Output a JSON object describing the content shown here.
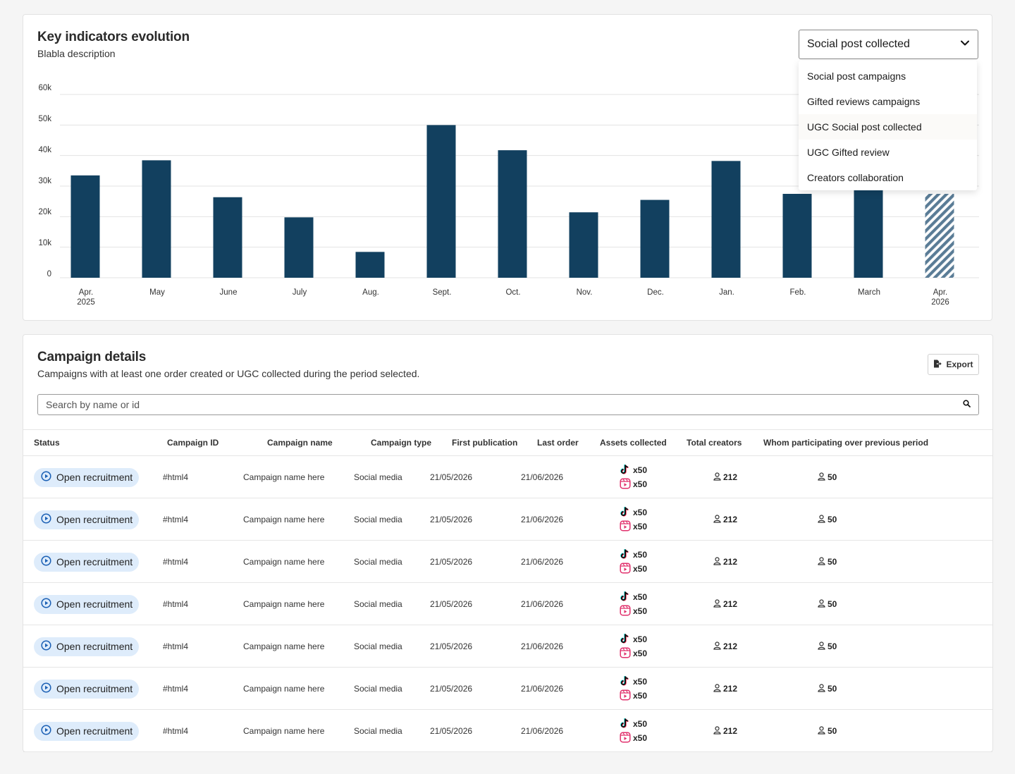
{
  "chart_card": {
    "title": "Key indicators evolution",
    "description": "Blabla description",
    "dropdown": {
      "selected": "Social post collected",
      "options": [
        "Social post campaigns",
        "Gifted reviews campaigns",
        "UGC Social post collected",
        "UGC Gifted review",
        "Creators collaboration"
      ]
    }
  },
  "chart_data": {
    "type": "bar",
    "categories": [
      "Apr. 2025",
      "May",
      "June",
      "July",
      "Aug.",
      "Sept.",
      "Oct.",
      "Nov.",
      "Dec.",
      "Jan.",
      "Feb.",
      "March",
      "Apr. 2026"
    ],
    "category_lines": [
      [
        "Apr.",
        "2025"
      ],
      [
        "May"
      ],
      [
        "June"
      ],
      [
        "July"
      ],
      [
        "Aug."
      ],
      [
        "Sept."
      ],
      [
        "Oct."
      ],
      [
        "Nov."
      ],
      [
        "Dec."
      ],
      [
        "Jan."
      ],
      [
        "Feb."
      ],
      [
        "March"
      ],
      [
        "Apr.",
        "2026"
      ]
    ],
    "values": [
      30500,
      35000,
      24000,
      18000,
      7700,
      45500,
      38000,
      19500,
      23200,
      34800,
      25000,
      28000,
      25000
    ],
    "projected": [
      false,
      false,
      false,
      false,
      false,
      false,
      false,
      false,
      false,
      false,
      false,
      false,
      true
    ],
    "y_ticks": [
      "0",
      "10k",
      "20k",
      "30k",
      "40k",
      "50k",
      "60k"
    ],
    "ylim": [
      0,
      50000
    ],
    "bar_color": "#12405f",
    "grid": true
  },
  "campaign_card": {
    "title": "Campaign details",
    "description": "Campaigns with at least one order created or UGC collected during the period selected.",
    "export_label": "Export",
    "search_placeholder": "Search by name or id",
    "columns": [
      "Status",
      "Campaign ID",
      "Campaign name",
      "Campaign type",
      "First publication",
      "Last order",
      "Assets collected",
      "Total creators",
      "Whom participating over previous period"
    ],
    "rows": [
      {
        "status": "Open recruitment",
        "id": "#html4",
        "name": "Campaign name here",
        "type": "Social media",
        "first_publication": "21/05/2026",
        "last_order": "21/06/2026",
        "tiktok": "x50",
        "reels": "x50",
        "total_creators": "212",
        "participating": "50"
      },
      {
        "status": "Open recruitment",
        "id": "#html4",
        "name": "Campaign name here",
        "type": "Social media",
        "first_publication": "21/05/2026",
        "last_order": "21/06/2026",
        "tiktok": "x50",
        "reels": "x50",
        "total_creators": "212",
        "participating": "50"
      },
      {
        "status": "Open recruitment",
        "id": "#html4",
        "name": "Campaign name here",
        "type": "Social media",
        "first_publication": "21/05/2026",
        "last_order": "21/06/2026",
        "tiktok": "x50",
        "reels": "x50",
        "total_creators": "212",
        "participating": "50"
      },
      {
        "status": "Open recruitment",
        "id": "#html4",
        "name": "Campaign name here",
        "type": "Social media",
        "first_publication": "21/05/2026",
        "last_order": "21/06/2026",
        "tiktok": "x50",
        "reels": "x50",
        "total_creators": "212",
        "participating": "50"
      },
      {
        "status": "Open recruitment",
        "id": "#html4",
        "name": "Campaign name here",
        "type": "Social media",
        "first_publication": "21/05/2026",
        "last_order": "21/06/2026",
        "tiktok": "x50",
        "reels": "x50",
        "total_creators": "212",
        "participating": "50"
      },
      {
        "status": "Open recruitment",
        "id": "#html4",
        "name": "Campaign name here",
        "type": "Social media",
        "first_publication": "21/05/2026",
        "last_order": "21/06/2026",
        "tiktok": "x50",
        "reels": "x50",
        "total_creators": "212",
        "participating": "50"
      },
      {
        "status": "Open recruitment",
        "id": "#html4",
        "name": "Campaign name here",
        "type": "Social media",
        "first_publication": "21/05/2026",
        "last_order": "21/06/2026",
        "tiktok": "x50",
        "reels": "x50",
        "total_creators": "212",
        "participating": "50"
      }
    ]
  },
  "icons": {
    "dropdown": "chevron-down-icon",
    "export": "export-icon",
    "search": "search-icon",
    "status": "play-circle-icon",
    "tiktok": "tiktok-icon",
    "reels": "instagram-reels-icon",
    "user": "user-icon"
  },
  "colors": {
    "bar": "#12405f",
    "status_chip_bg": "#deecfb",
    "status_icon": "#1a5fb4",
    "reels_icon": "#e1306c"
  }
}
